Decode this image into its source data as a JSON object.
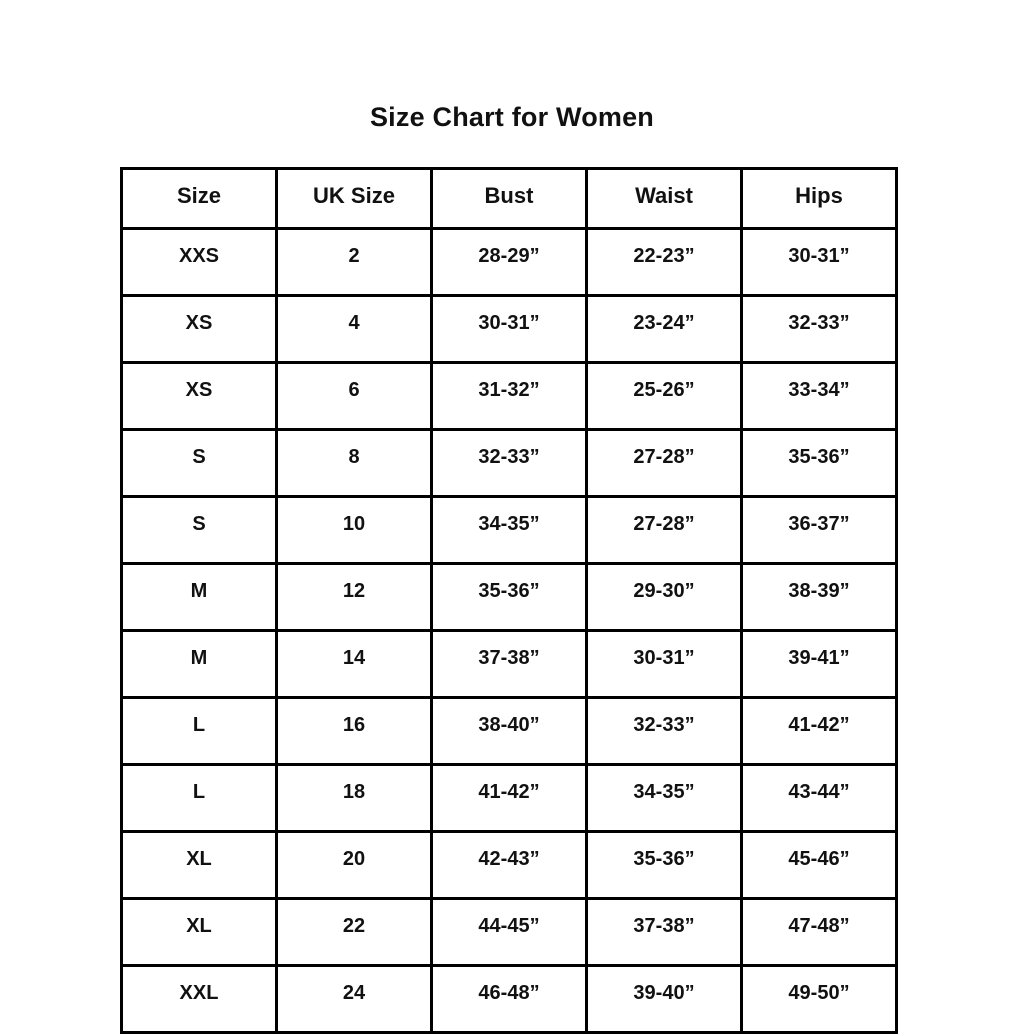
{
  "page": {
    "background_color": "#ffffff",
    "border_color": "#000000",
    "text_color": "#111111"
  },
  "title": "Size Chart for Women",
  "chart_data": {
    "type": "table",
    "title": "Size Chart for Women",
    "columns": [
      "Size",
      "UK Size",
      "Bust",
      "Waist",
      "Hips"
    ],
    "rows": [
      [
        "XXS",
        "2",
        "28-29”",
        "22-23”",
        "30-31”"
      ],
      [
        "XS",
        "4",
        "30-31”",
        "23-24”",
        "32-33”"
      ],
      [
        "XS",
        "6",
        "31-32”",
        "25-26”",
        "33-34”"
      ],
      [
        "S",
        "8",
        "32-33”",
        "27-28”",
        "35-36”"
      ],
      [
        "S",
        "10",
        "34-35”",
        "27-28”",
        "36-37”"
      ],
      [
        "M",
        "12",
        "35-36”",
        "29-30”",
        "38-39”"
      ],
      [
        "M",
        "14",
        "37-38”",
        "30-31”",
        "39-41”"
      ],
      [
        "L",
        "16",
        "38-40”",
        "32-33”",
        "41-42”"
      ],
      [
        "L",
        "18",
        "41-42”",
        "34-35”",
        "43-44”"
      ],
      [
        "XL",
        "20",
        "42-43”",
        "35-36”",
        "45-46”"
      ],
      [
        "XL",
        "22",
        "44-45”",
        "37-38”",
        "47-48”"
      ],
      [
        "XXL",
        "24",
        "46-48”",
        "39-40”",
        "49-50”"
      ]
    ],
    "layout": {
      "columns_equal_width": true,
      "grid": "all-borders",
      "header_row": true
    }
  }
}
